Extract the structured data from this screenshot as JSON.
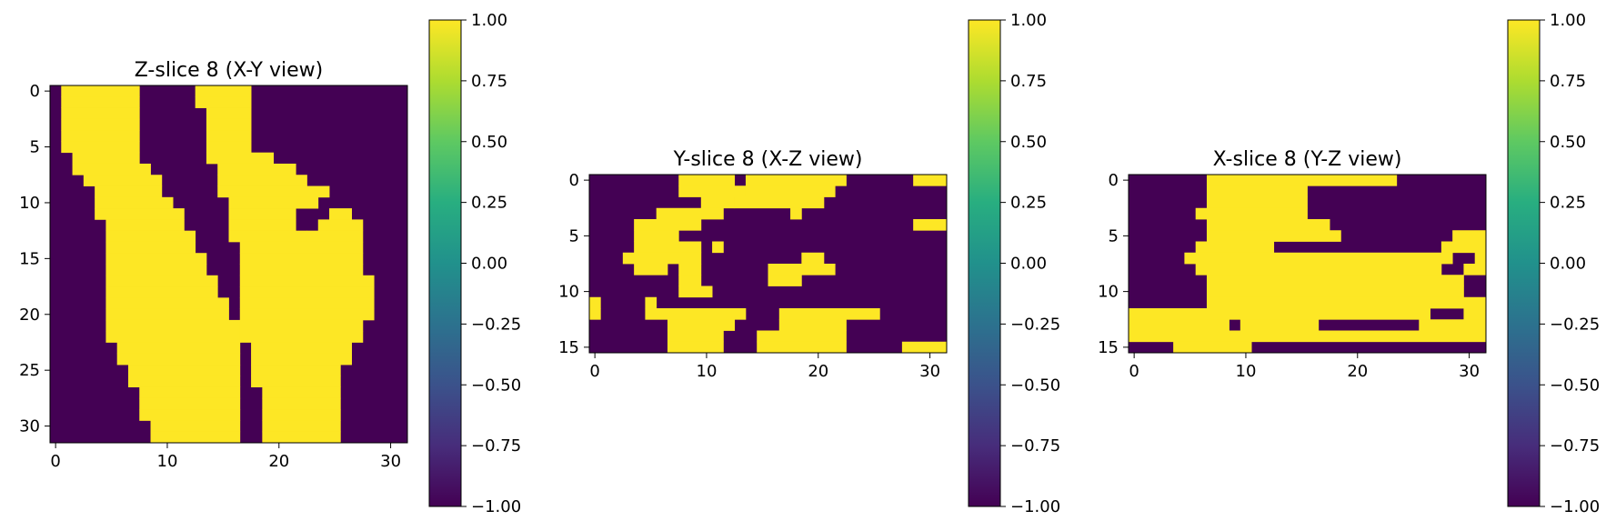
{
  "chart_data": [
    {
      "type": "heatmap",
      "title": "Z-slice 8 (X-Y view)",
      "rows": 32,
      "cols": 32,
      "xticks": [
        0,
        10,
        20,
        30
      ],
      "yticks": [
        0,
        5,
        10,
        15,
        20,
        25,
        30
      ],
      "colorbar": {
        "min": -1.0,
        "max": 1.0,
        "ticks": [
          "1.00",
          "0.75",
          "0.50",
          "0.25",
          "0.00",
          "−0.25",
          "−0.50",
          "−0.75",
          "−1.00"
        ]
      },
      "yellow_runs": [
        [
          [
            1,
            7
          ],
          [
            13,
            17
          ]
        ],
        [
          [
            1,
            7
          ],
          [
            13,
            17
          ]
        ],
        [
          [
            1,
            7
          ],
          [
            14,
            17
          ]
        ],
        [
          [
            1,
            7
          ],
          [
            14,
            17
          ]
        ],
        [
          [
            1,
            7
          ],
          [
            14,
            17
          ]
        ],
        [
          [
            1,
            7
          ],
          [
            14,
            17
          ]
        ],
        [
          [
            2,
            7
          ],
          [
            14,
            19
          ]
        ],
        [
          [
            2,
            8
          ],
          [
            15,
            21
          ]
        ],
        [
          [
            3,
            9
          ],
          [
            15,
            22
          ]
        ],
        [
          [
            4,
            9
          ],
          [
            15,
            24
          ]
        ],
        [
          [
            4,
            10
          ],
          [
            16,
            23
          ]
        ],
        [
          [
            4,
            11
          ],
          [
            16,
            21
          ],
          [
            25,
            26
          ]
        ],
        [
          [
            5,
            11
          ],
          [
            16,
            21
          ],
          [
            24,
            27
          ]
        ],
        [
          [
            5,
            12
          ],
          [
            16,
            22
          ],
          [
            23,
            27
          ]
        ],
        [
          [
            5,
            12
          ],
          [
            17,
            21
          ],
          [
            22,
            27
          ]
        ],
        [
          [
            5,
            13
          ],
          [
            17,
            21
          ],
          [
            22,
            27
          ]
        ],
        [
          [
            5,
            13
          ],
          [
            17,
            21
          ],
          [
            22,
            27
          ]
        ],
        [
          [
            5,
            14
          ],
          [
            17,
            21
          ],
          [
            22,
            28
          ]
        ],
        [
          [
            5,
            14
          ],
          [
            17,
            28
          ]
        ],
        [
          [
            5,
            15
          ],
          [
            17,
            28
          ]
        ],
        [
          [
            5,
            15
          ],
          [
            17,
            28
          ]
        ],
        [
          [
            5,
            16
          ],
          [
            17,
            27
          ]
        ],
        [
          [
            5,
            16
          ],
          [
            17,
            27
          ]
        ],
        [
          [
            6,
            16
          ],
          [
            18,
            26
          ]
        ],
        [
          [
            6,
            16
          ],
          [
            18,
            26
          ]
        ],
        [
          [
            7,
            16
          ],
          [
            18,
            25
          ]
        ],
        [
          [
            7,
            16
          ],
          [
            18,
            25
          ]
        ],
        [
          [
            8,
            16
          ],
          [
            19,
            25
          ]
        ],
        [
          [
            8,
            16
          ],
          [
            19,
            25
          ]
        ],
        [
          [
            8,
            16
          ],
          [
            19,
            25
          ]
        ],
        [
          [
            9,
            16
          ],
          [
            19,
            25
          ]
        ],
        [
          [
            9,
            16
          ],
          [
            19,
            25
          ]
        ]
      ]
    },
    {
      "type": "heatmap",
      "title": "Y-slice 8 (X-Z view)",
      "rows": 16,
      "cols": 32,
      "xticks": [
        0,
        10,
        20,
        30
      ],
      "yticks": [
        0,
        5,
        10,
        15
      ],
      "colorbar": {
        "min": -1.0,
        "max": 1.0,
        "ticks": [
          "1.00",
          "0.75",
          "0.50",
          "0.25",
          "0.00",
          "−0.25",
          "−0.50",
          "−0.75",
          "−1.00"
        ]
      },
      "yellow_runs": [
        [
          [
            8,
            12
          ],
          [
            14,
            22
          ],
          [
            29,
            31
          ]
        ],
        [
          [
            8,
            13
          ],
          [
            14,
            21
          ]
        ],
        [
          [
            10,
            12
          ],
          [
            13,
            20
          ]
        ],
        [
          [
            6,
            11
          ],
          [
            18,
            18
          ]
        ],
        [
          [
            4,
            9
          ],
          [
            29,
            31
          ]
        ],
        [
          [
            4,
            7
          ]
        ],
        [
          [
            4,
            9
          ],
          [
            11,
            11
          ]
        ],
        [
          [
            3,
            9
          ],
          [
            19,
            20
          ]
        ],
        [
          [
            4,
            6
          ],
          [
            8,
            9
          ],
          [
            16,
            21
          ]
        ],
        [
          [
            8,
            9
          ],
          [
            16,
            18
          ]
        ],
        [
          [
            8,
            10
          ]
        ],
        [
          [
            0,
            0
          ],
          [
            5,
            5
          ]
        ],
        [
          [
            0,
            0
          ],
          [
            5,
            13
          ],
          [
            17,
            25
          ]
        ],
        [
          [
            7,
            12
          ],
          [
            17,
            22
          ]
        ],
        [
          [
            7,
            11
          ],
          [
            15,
            22
          ]
        ],
        [
          [
            7,
            11
          ],
          [
            15,
            22
          ],
          [
            28,
            31
          ]
        ]
      ]
    },
    {
      "type": "heatmap",
      "title": "X-slice 8 (Y-Z view)",
      "rows": 16,
      "cols": 32,
      "xticks": [
        0,
        10,
        20,
        30
      ],
      "yticks": [
        0,
        5,
        10,
        15
      ],
      "colorbar": {
        "min": -1.0,
        "max": 1.0,
        "ticks": [
          "1.00",
          "0.75",
          "0.50",
          "0.25",
          "0.00",
          "−0.25",
          "−0.50",
          "−0.75",
          "−1.00"
        ]
      },
      "yellow_runs": [
        [
          [
            7,
            23
          ]
        ],
        [
          [
            7,
            15
          ]
        ],
        [
          [
            7,
            15
          ]
        ],
        [
          [
            6,
            15
          ]
        ],
        [
          [
            7,
            17
          ]
        ],
        [
          [
            7,
            18
          ],
          [
            29,
            31
          ]
        ],
        [
          [
            6,
            12
          ],
          [
            28,
            31
          ]
        ],
        [
          [
            5,
            28
          ],
          [
            31,
            31
          ]
        ],
        [
          [
            6,
            27
          ],
          [
            30,
            31
          ]
        ],
        [
          [
            7,
            29
          ]
        ],
        [
          [
            7,
            29
          ]
        ],
        [
          [
            7,
            31
          ]
        ],
        [
          [
            0,
            26
          ],
          [
            30,
            31
          ]
        ],
        [
          [
            0,
            8
          ],
          [
            10,
            16
          ],
          [
            26,
            31
          ]
        ],
        [
          [
            0,
            31
          ]
        ],
        [
          [
            4,
            10
          ]
        ]
      ]
    }
  ]
}
